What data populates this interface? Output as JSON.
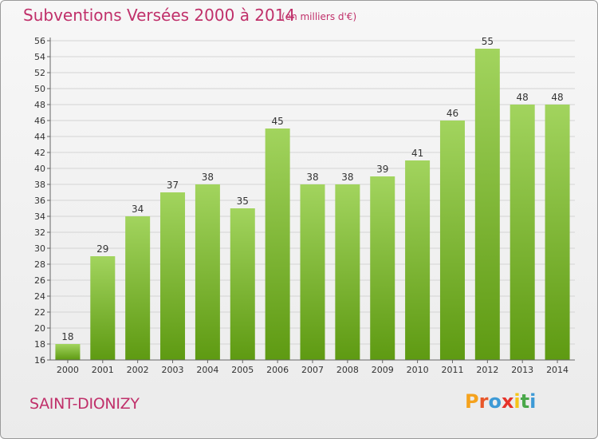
{
  "header": {
    "title": "Subventions Versées 2000 à 2014",
    "unit": "(en milliers d'€)"
  },
  "footer": {
    "commune": "SAINT-DIONIZY",
    "logo_letters": [
      "P",
      "r",
      "o",
      "x",
      "i",
      "t",
      "i"
    ],
    "logo_colors": [
      "#f5a21d",
      "#e8572a",
      "#3d9ad6",
      "#e6332a",
      "#f5c518",
      "#4aa84a",
      "#3d9ad6"
    ]
  },
  "colors": {
    "bar_top": "#a2d45e",
    "bar_bottom": "#5e9a12",
    "grid": "#d4d4d4",
    "axis": "#666666",
    "title": "#c0306a"
  },
  "chart_data": {
    "type": "bar",
    "title": "Subventions Versées 2000 à 2014",
    "subtitle": "(en milliers d'€)",
    "categories": [
      "2000",
      "2001",
      "2002",
      "2003",
      "2004",
      "2005",
      "2006",
      "2007",
      "2008",
      "2009",
      "2010",
      "2011",
      "2012",
      "2013",
      "2014"
    ],
    "values": [
      18,
      29,
      34,
      37,
      38,
      35,
      45,
      38,
      38,
      39,
      41,
      46,
      55,
      48,
      48
    ],
    "ylim": [
      16,
      56
    ],
    "ytick_step": 2,
    "grid": true,
    "xlabel": "",
    "ylabel": ""
  }
}
